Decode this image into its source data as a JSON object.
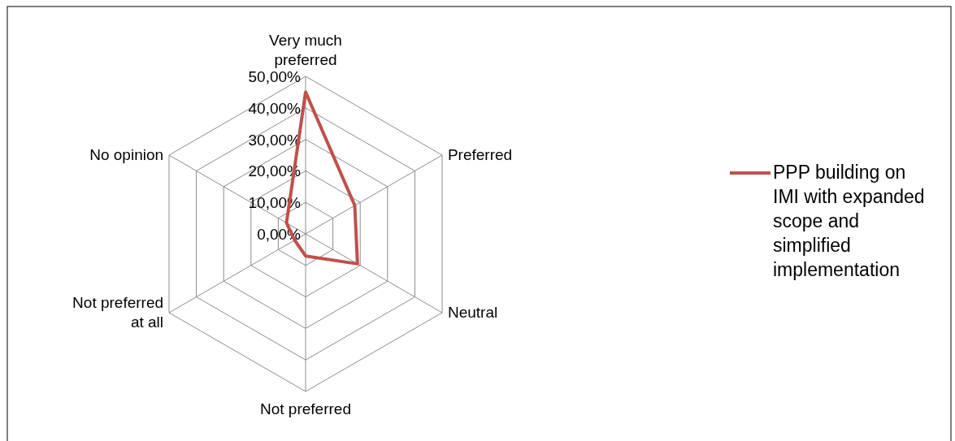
{
  "chart_data": {
    "type": "radar",
    "categories": [
      "Very much preferred",
      "Preferred",
      "Neutral",
      "Not preferred",
      "Not preferred at all",
      "No opinion"
    ],
    "series": [
      {
        "name": "PPP building on IMI with expanded scope and simplified implementation",
        "color": "#c0504d",
        "values": [
          45,
          18,
          19,
          7,
          4,
          7
        ]
      }
    ],
    "ylim": [
      0,
      50
    ],
    "yticks": [
      {
        "value": 0,
        "label": "0,00%"
      },
      {
        "value": 10,
        "label": "10,00%"
      },
      {
        "value": 20,
        "label": "20,00%"
      },
      {
        "value": 30,
        "label": "30,00%"
      },
      {
        "value": 40,
        "label": "40,00%"
      },
      {
        "value": 50,
        "label": "50,00%"
      }
    ],
    "legend": "right",
    "marker": "none",
    "line_style": "solid"
  }
}
